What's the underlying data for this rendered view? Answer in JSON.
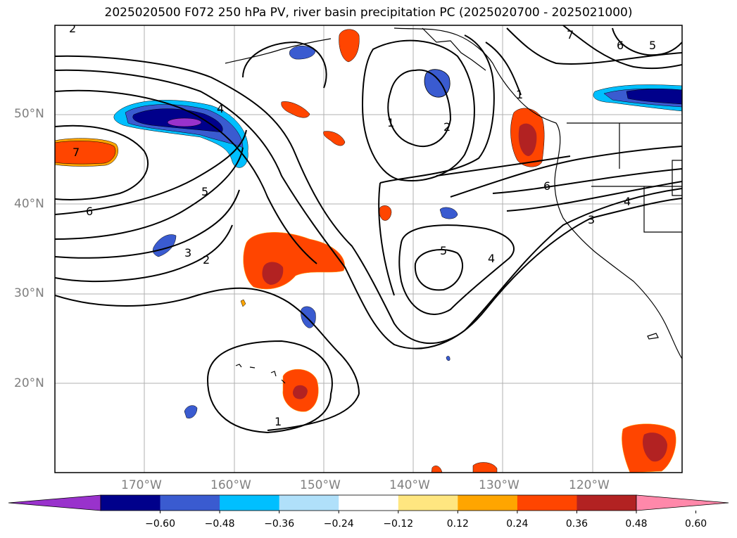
{
  "title": "2025020500 F072 250 hPa PV, river basin precipitation PC (2025020700 - 2025021000)",
  "lat_labels": [
    "50°N",
    "40°N",
    "30°N",
    "20°N"
  ],
  "lon_labels": [
    "170°W",
    "160°W",
    "150°W",
    "140°W",
    "130°W",
    "120°W"
  ],
  "contour_labels": [
    "7",
    "6",
    "5",
    "4",
    "3",
    "2",
    "1",
    "1",
    "2",
    "5",
    "4",
    "4",
    "3",
    "6",
    "7",
    "6",
    "5",
    "1",
    "2"
  ],
  "colorbar": {
    "ticks": [
      "−0.60",
      "−0.48",
      "−0.36",
      "−0.24",
      "−0.12",
      "0.12",
      "0.24",
      "0.36",
      "0.48",
      "0.60"
    ],
    "colors": [
      "#9932cc",
      "#00008b",
      "#3a5bd0",
      "#00bfff",
      "#b0e0fa",
      "#ffffff",
      "#ffe680",
      "#ffa500",
      "#ff4500",
      "#b22222",
      "#ff88aa"
    ]
  }
}
